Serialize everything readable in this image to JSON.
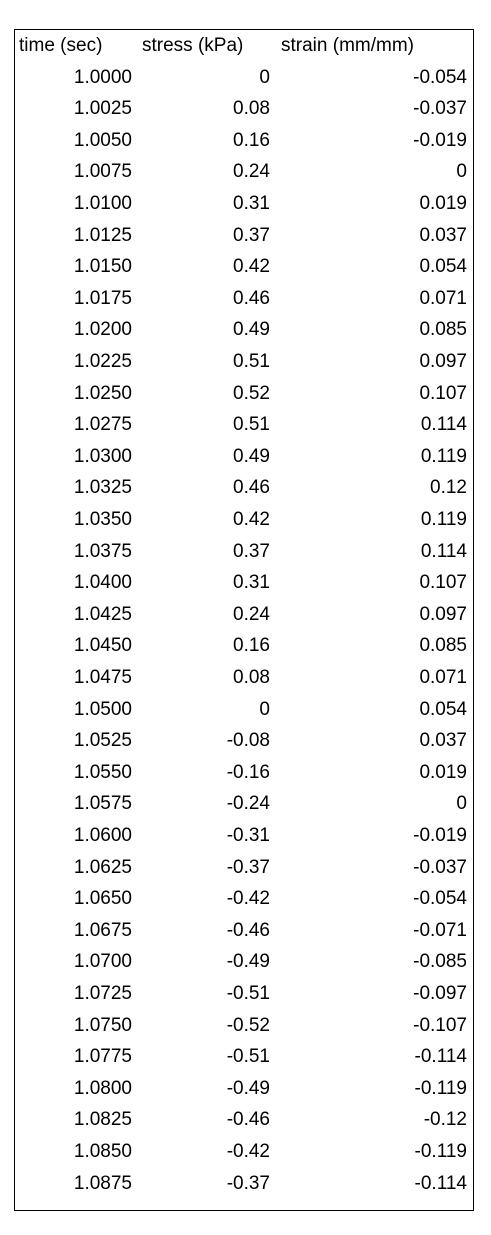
{
  "table": {
    "headers": {
      "time": "time (sec)",
      "stress": "stress (kPa)",
      "strain": "strain (mm/mm)"
    },
    "rows": [
      {
        "time": "1.0000",
        "stress": "0",
        "strain": "-0.054"
      },
      {
        "time": "1.0025",
        "stress": "0.08",
        "strain": "-0.037"
      },
      {
        "time": "1.0050",
        "stress": "0.16",
        "strain": "-0.019"
      },
      {
        "time": "1.0075",
        "stress": "0.24",
        "strain": "0"
      },
      {
        "time": "1.0100",
        "stress": "0.31",
        "strain": "0.019"
      },
      {
        "time": "1.0125",
        "stress": "0.37",
        "strain": "0.037"
      },
      {
        "time": "1.0150",
        "stress": "0.42",
        "strain": "0.054"
      },
      {
        "time": "1.0175",
        "stress": "0.46",
        "strain": "0.071"
      },
      {
        "time": "1.0200",
        "stress": "0.49",
        "strain": "0.085"
      },
      {
        "time": "1.0225",
        "stress": "0.51",
        "strain": "0.097"
      },
      {
        "time": "1.0250",
        "stress": "0.52",
        "strain": "0.107"
      },
      {
        "time": "1.0275",
        "stress": "0.51",
        "strain": "0.114"
      },
      {
        "time": "1.0300",
        "stress": "0.49",
        "strain": "0.119"
      },
      {
        "time": "1.0325",
        "stress": "0.46",
        "strain": "0.12"
      },
      {
        "time": "1.0350",
        "stress": "0.42",
        "strain": "0.119"
      },
      {
        "time": "1.0375",
        "stress": "0.37",
        "strain": "0.114"
      },
      {
        "time": "1.0400",
        "stress": "0.31",
        "strain": "0.107"
      },
      {
        "time": "1.0425",
        "stress": "0.24",
        "strain": "0.097"
      },
      {
        "time": "1.0450",
        "stress": "0.16",
        "strain": "0.085"
      },
      {
        "time": "1.0475",
        "stress": "0.08",
        "strain": "0.071"
      },
      {
        "time": "1.0500",
        "stress": "0",
        "strain": "0.054"
      },
      {
        "time": "1.0525",
        "stress": "-0.08",
        "strain": "0.037"
      },
      {
        "time": "1.0550",
        "stress": "-0.16",
        "strain": "0.019"
      },
      {
        "time": "1.0575",
        "stress": "-0.24",
        "strain": "0"
      },
      {
        "time": "1.0600",
        "stress": "-0.31",
        "strain": "-0.019"
      },
      {
        "time": "1.0625",
        "stress": "-0.37",
        "strain": "-0.037"
      },
      {
        "time": "1.0650",
        "stress": "-0.42",
        "strain": "-0.054"
      },
      {
        "time": "1.0675",
        "stress": "-0.46",
        "strain": "-0.071"
      },
      {
        "time": "1.0700",
        "stress": "-0.49",
        "strain": "-0.085"
      },
      {
        "time": "1.0725",
        "stress": "-0.51",
        "strain": "-0.097"
      },
      {
        "time": "1.0750",
        "stress": "-0.52",
        "strain": "-0.107"
      },
      {
        "time": "1.0775",
        "stress": "-0.51",
        "strain": "-0.114"
      },
      {
        "time": "1.0800",
        "stress": "-0.49",
        "strain": "-0.119"
      },
      {
        "time": "1.0825",
        "stress": "-0.46",
        "strain": "-0.12"
      },
      {
        "time": "1.0850",
        "stress": "-0.42",
        "strain": "-0.119"
      },
      {
        "time": "1.0875",
        "stress": "-0.37",
        "strain": "-0.114"
      }
    ]
  }
}
